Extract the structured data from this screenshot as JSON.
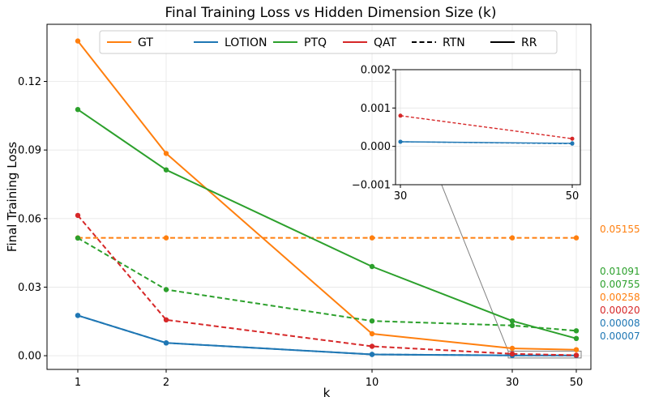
{
  "chart_data": {
    "type": "line",
    "title": "Final Training Loss vs Hidden Dimension Size (k)",
    "xlabel": "k",
    "ylabel": "Final Training Loss",
    "x": [
      1,
      2,
      10,
      30,
      50
    ],
    "x_ticks": [
      "1",
      "2",
      "10",
      "30",
      "50"
    ],
    "ylim": [
      -0.006,
      0.145
    ],
    "y_ticks": [
      0.0,
      0.03,
      0.06,
      0.09,
      0.12
    ],
    "y_tick_labels": [
      "0.00",
      "0.03",
      "0.06",
      "0.09",
      "0.12"
    ],
    "grid": true,
    "legend": {
      "position": "top",
      "entries": [
        {
          "label": "GT",
          "color": "#ff7f0e",
          "style": "solid"
        },
        {
          "label": "LOTION",
          "color": "#1f77b4",
          "style": "solid"
        },
        {
          "label": "PTQ",
          "color": "#2ca02c",
          "style": "solid"
        },
        {
          "label": "QAT",
          "color": "#d62728",
          "style": "solid"
        },
        {
          "label": "RTN",
          "color": "#000000",
          "style": "dashed"
        },
        {
          "label": "RR",
          "color": "#000000",
          "style": "solid"
        }
      ]
    },
    "series": [
      {
        "name": "GT RR",
        "method": "GT",
        "rounding": "RR",
        "color": "#ff7f0e",
        "dashed": false,
        "values": [
          0.1377,
          0.0885,
          0.0096,
          0.0032,
          0.0026
        ]
      },
      {
        "name": "GT RTN",
        "method": "GT",
        "rounding": "RTN",
        "color": "#ff7f0e",
        "dashed": true,
        "values": [
          0.05155,
          0.05155,
          0.05155,
          0.05155,
          0.05155
        ]
      },
      {
        "name": "LOTION RR",
        "method": "LOTION",
        "rounding": "RR",
        "color": "#1f77b4",
        "dashed": false,
        "values": [
          0.0176,
          0.0056,
          0.00055,
          0.00012,
          8e-05
        ]
      },
      {
        "name": "LOTION RTN",
        "method": "LOTION",
        "rounding": "RTN",
        "color": "#1f77b4",
        "dashed": true,
        "values": [
          0.0176,
          0.0056,
          0.00055,
          0.00012,
          7e-05
        ]
      },
      {
        "name": "PTQ RR",
        "method": "PTQ",
        "rounding": "RR",
        "color": "#2ca02c",
        "dashed": false,
        "values": [
          0.1077,
          0.0813,
          0.039,
          0.0152,
          0.00755
        ]
      },
      {
        "name": "PTQ RTN",
        "method": "PTQ",
        "rounding": "RTN",
        "color": "#2ca02c",
        "dashed": true,
        "values": [
          0.0515,
          0.0289,
          0.0152,
          0.0132,
          0.01091
        ]
      },
      {
        "name": "QAT RTN",
        "method": "QAT",
        "rounding": "RTN",
        "color": "#d62728",
        "dashed": true,
        "values": [
          0.0614,
          0.0157,
          0.0041,
          0.0008,
          0.0002
        ]
      }
    ],
    "end_labels": [
      {
        "text": "0.05155",
        "color": "#ff7f0e"
      },
      {
        "text": "0.01091",
        "color": "#2ca02c"
      },
      {
        "text": "0.00755",
        "color": "#2ca02c"
      },
      {
        "text": "0.00258",
        "color": "#ff7f0e"
      },
      {
        "text": "0.00020",
        "color": "#d62728"
      },
      {
        "text": "0.00008",
        "color": "#1f77b4"
      },
      {
        "text": "0.00007",
        "color": "#1f77b4"
      }
    ],
    "inset": {
      "x": [
        30,
        50
      ],
      "x_ticks": [
        "30",
        "50"
      ],
      "xlim": [
        28.5,
        51.2
      ],
      "ylim": [
        -0.001,
        0.002
      ],
      "y_ticks": [
        -0.001,
        0.0,
        0.001,
        0.002
      ],
      "y_tick_labels": [
        "−0.001",
        "0.000",
        "0.001",
        "0.002"
      ]
    }
  }
}
